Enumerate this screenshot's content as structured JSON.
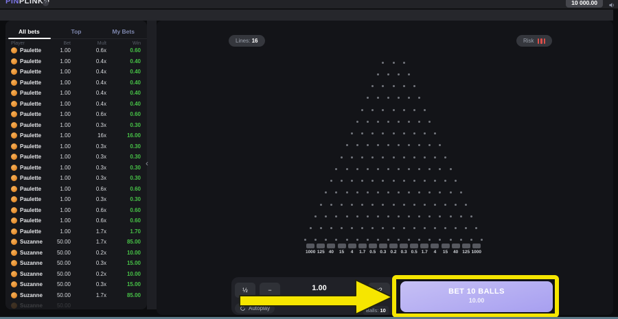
{
  "topbar": {
    "brand_primary": "PIN",
    "brand_secondary": "PLINKO",
    "info_badge": "?",
    "balance": "10 000.00",
    "sound_icon": "speaker-icon"
  },
  "sidebar": {
    "tabs": [
      "All bets",
      "Top",
      "My Bets"
    ],
    "active_tab": "All bets",
    "columns": [
      "Player",
      "Bet",
      "Mult",
      "Win"
    ],
    "collapse_icon": "‹",
    "rows": [
      {
        "player": "Paulette",
        "bet": "1.00",
        "mult": "0.6x",
        "win": "0.60"
      },
      {
        "player": "Paulette",
        "bet": "1.00",
        "mult": "0.4x",
        "win": "0.40"
      },
      {
        "player": "Paulette",
        "bet": "1.00",
        "mult": "0.4x",
        "win": "0.40"
      },
      {
        "player": "Paulette",
        "bet": "1.00",
        "mult": "0.4x",
        "win": "0.40"
      },
      {
        "player": "Paulette",
        "bet": "1.00",
        "mult": "0.4x",
        "win": "0.40"
      },
      {
        "player": "Paulette",
        "bet": "1.00",
        "mult": "0.4x",
        "win": "0.40"
      },
      {
        "player": "Paulette",
        "bet": "1.00",
        "mult": "0.6x",
        "win": "0.60"
      },
      {
        "player": "Paulette",
        "bet": "1.00",
        "mult": "0.3x",
        "win": "0.30"
      },
      {
        "player": "Paulette",
        "bet": "1.00",
        "mult": "16x",
        "win": "16.00"
      },
      {
        "player": "Paulette",
        "bet": "1.00",
        "mult": "0.3x",
        "win": "0.30"
      },
      {
        "player": "Paulette",
        "bet": "1.00",
        "mult": "0.3x",
        "win": "0.30"
      },
      {
        "player": "Paulette",
        "bet": "1.00",
        "mult": "0.3x",
        "win": "0.30"
      },
      {
        "player": "Paulette",
        "bet": "1.00",
        "mult": "0.3x",
        "win": "0.30"
      },
      {
        "player": "Paulette",
        "bet": "1.00",
        "mult": "0.6x",
        "win": "0.60"
      },
      {
        "player": "Paulette",
        "bet": "1.00",
        "mult": "0.3x",
        "win": "0.30"
      },
      {
        "player": "Paulette",
        "bet": "1.00",
        "mult": "0.6x",
        "win": "0.60"
      },
      {
        "player": "Paulette",
        "bet": "1.00",
        "mult": "0.6x",
        "win": "0.60"
      },
      {
        "player": "Paulette",
        "bet": "1.00",
        "mult": "1.7x",
        "win": "1.70"
      },
      {
        "player": "Suzanne",
        "bet": "50.00",
        "mult": "1.7x",
        "win": "85.00"
      },
      {
        "player": "Suzanne",
        "bet": "50.00",
        "mult": "0.2x",
        "win": "10.00"
      },
      {
        "player": "Suzanne",
        "bet": "50.00",
        "mult": "0.3x",
        "win": "15.00"
      },
      {
        "player": "Suzanne",
        "bet": "50.00",
        "mult": "0.2x",
        "win": "10.00"
      },
      {
        "player": "Suzanne",
        "bet": "50.00",
        "mult": "0.3x",
        "win": "15.00"
      },
      {
        "player": "Suzanne",
        "bet": "50.00",
        "mult": "1.7x",
        "win": "85.00"
      }
    ],
    "faded_row": {
      "player": "Suzanne",
      "bet": "50.00",
      "mult": "",
      "win": ""
    }
  },
  "board": {
    "lines_label": "Lines:",
    "lines_value": "16",
    "risk_label": "Risk",
    "risk_level_bars": 3,
    "rows": 16,
    "slots": [
      "1000",
      "125",
      "40",
      "15",
      "4",
      "1.7",
      "0.5",
      "0.3",
      "0.2",
      "0.3",
      "0.5",
      "1.7",
      "4",
      "15",
      "40",
      "125",
      "1000"
    ]
  },
  "controls": {
    "half_label": "½",
    "minus_label": "−",
    "bet_amount": "1.00",
    "double_label": "x2",
    "autoplay_label": "Autoplay",
    "balls_label": "Balls:",
    "balls_value": "10",
    "bet_button_line1": "BET 10 BALLS",
    "bet_button_line2": "10.00"
  },
  "colors": {
    "accent_yellow": "#f6e600",
    "bet_button": "#aba3f0",
    "win_green": "#47c247",
    "risk_red": "#dc4f4a",
    "brand_purple": "#7d76e8"
  }
}
